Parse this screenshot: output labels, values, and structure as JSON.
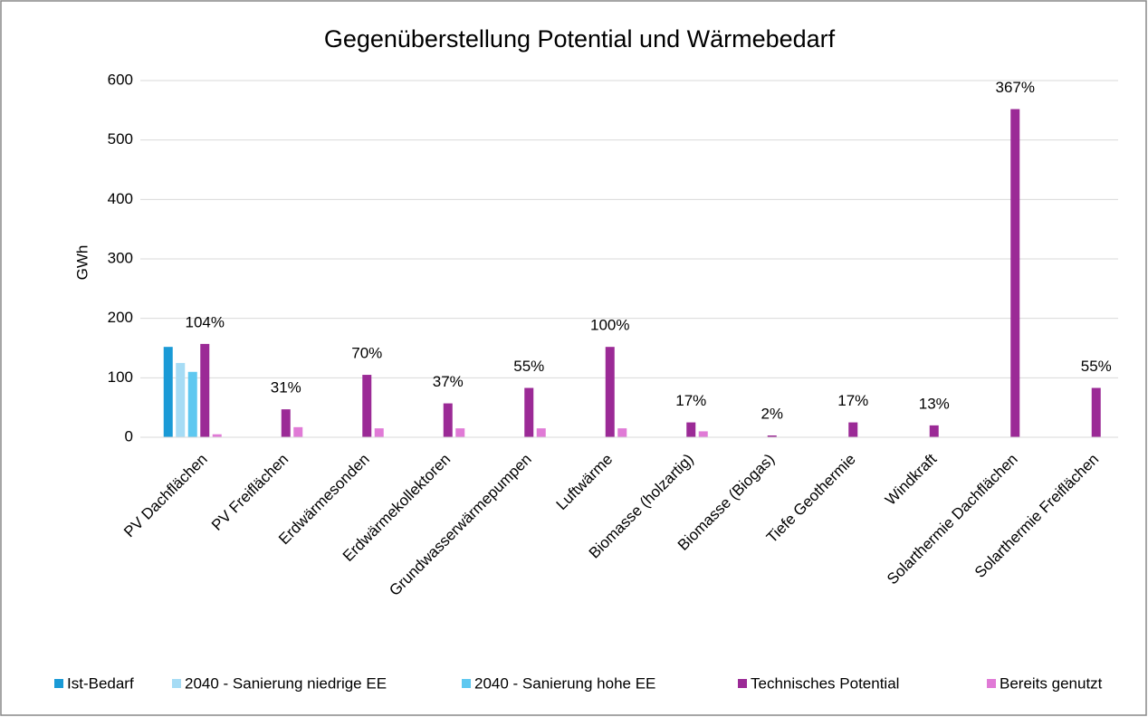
{
  "chart_data": {
    "type": "bar",
    "title": "Gegenüberstellung Potential und Wärmebedarf",
    "y_label": "GWh",
    "categories": [
      "PV Dachflächen",
      "PV Freiflächen",
      "Erdwärmesonden",
      "Erdwärmekollektoren",
      "Grundwasserwärmepumpen",
      "Luftwärme",
      "Biomasse (holzartig)",
      "Biomasse (Biogas)",
      "Tiefe Geothermie",
      "Windkraft",
      "Solarthermie Dachflächen",
      "Solarthermie Freiflächen"
    ],
    "series": [
      {
        "name": "Ist-Bedarf",
        "color": "#1a9ad6",
        "values": [
          152,
          null,
          null,
          null,
          null,
          null,
          null,
          null,
          null,
          null,
          null,
          null
        ]
      },
      {
        "name": "2040 - Sanierung niedrige EE",
        "color": "#a6dcf5",
        "values": [
          125,
          null,
          null,
          null,
          null,
          null,
          null,
          null,
          null,
          null,
          null,
          null
        ]
      },
      {
        "name": "2040 - Sanierung hohe EE",
        "color": "#5ec8f0",
        "values": [
          110,
          null,
          null,
          null,
          null,
          null,
          null,
          null,
          null,
          null,
          null,
          null
        ]
      },
      {
        "name": "Technisches Potential",
        "color": "#9b2a96",
        "values": [
          157,
          47,
          105,
          57,
          83,
          152,
          25,
          3,
          25,
          20,
          552,
          83
        ]
      },
      {
        "name": "Bereits genutzt",
        "color": "#e07ad6",
        "values": [
          5,
          17,
          15,
          15,
          15,
          15,
          10,
          null,
          null,
          null,
          null,
          null
        ]
      }
    ],
    "percent_labels": [
      "104%",
      "31%",
      "70%",
      "37%",
      "55%",
      "100%",
      "17%",
      "2%",
      "17%",
      "13%",
      "367%",
      "55%"
    ],
    "ylim": [
      0,
      600
    ],
    "yticks": [
      0,
      100,
      200,
      300,
      400,
      500,
      600
    ],
    "grid": true
  }
}
